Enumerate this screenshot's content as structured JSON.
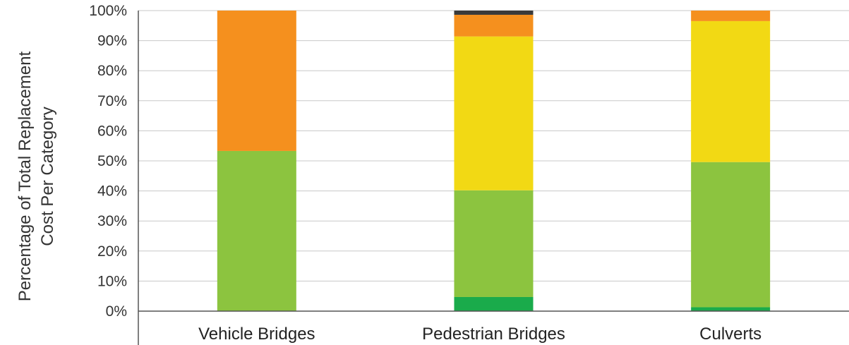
{
  "chart_data": {
    "type": "bar",
    "stacked": true,
    "title": "",
    "xlabel": "",
    "ylabel_lines": [
      "Percentage of Total Replacement",
      "Cost Per Category"
    ],
    "categories": [
      "Vehicle Bridges",
      "Pedestrian Bridges",
      "Culverts"
    ],
    "ylim": [
      0,
      100
    ],
    "yticks": [
      0,
      10,
      20,
      30,
      40,
      50,
      60,
      70,
      80,
      90,
      100
    ],
    "ytick_labels": [
      "0%",
      "10%",
      "20%",
      "30%",
      "40%",
      "50%",
      "60%",
      "70%",
      "80%",
      "90%",
      "100%"
    ],
    "grid": true,
    "series": [
      {
        "color": "#1aab4b",
        "values": [
          0,
          4.7,
          1.3
        ]
      },
      {
        "color": "#8cc43f",
        "values": [
          53.3,
          35.5,
          48.3
        ]
      },
      {
        "color": "#f2d914",
        "values": [
          0,
          51.2,
          46.9
        ]
      },
      {
        "color": "#f5901e",
        "values": [
          46.7,
          7.2,
          3.5
        ]
      },
      {
        "color": "#3a3a3a",
        "values": [
          0,
          1.4,
          0
        ]
      }
    ]
  }
}
